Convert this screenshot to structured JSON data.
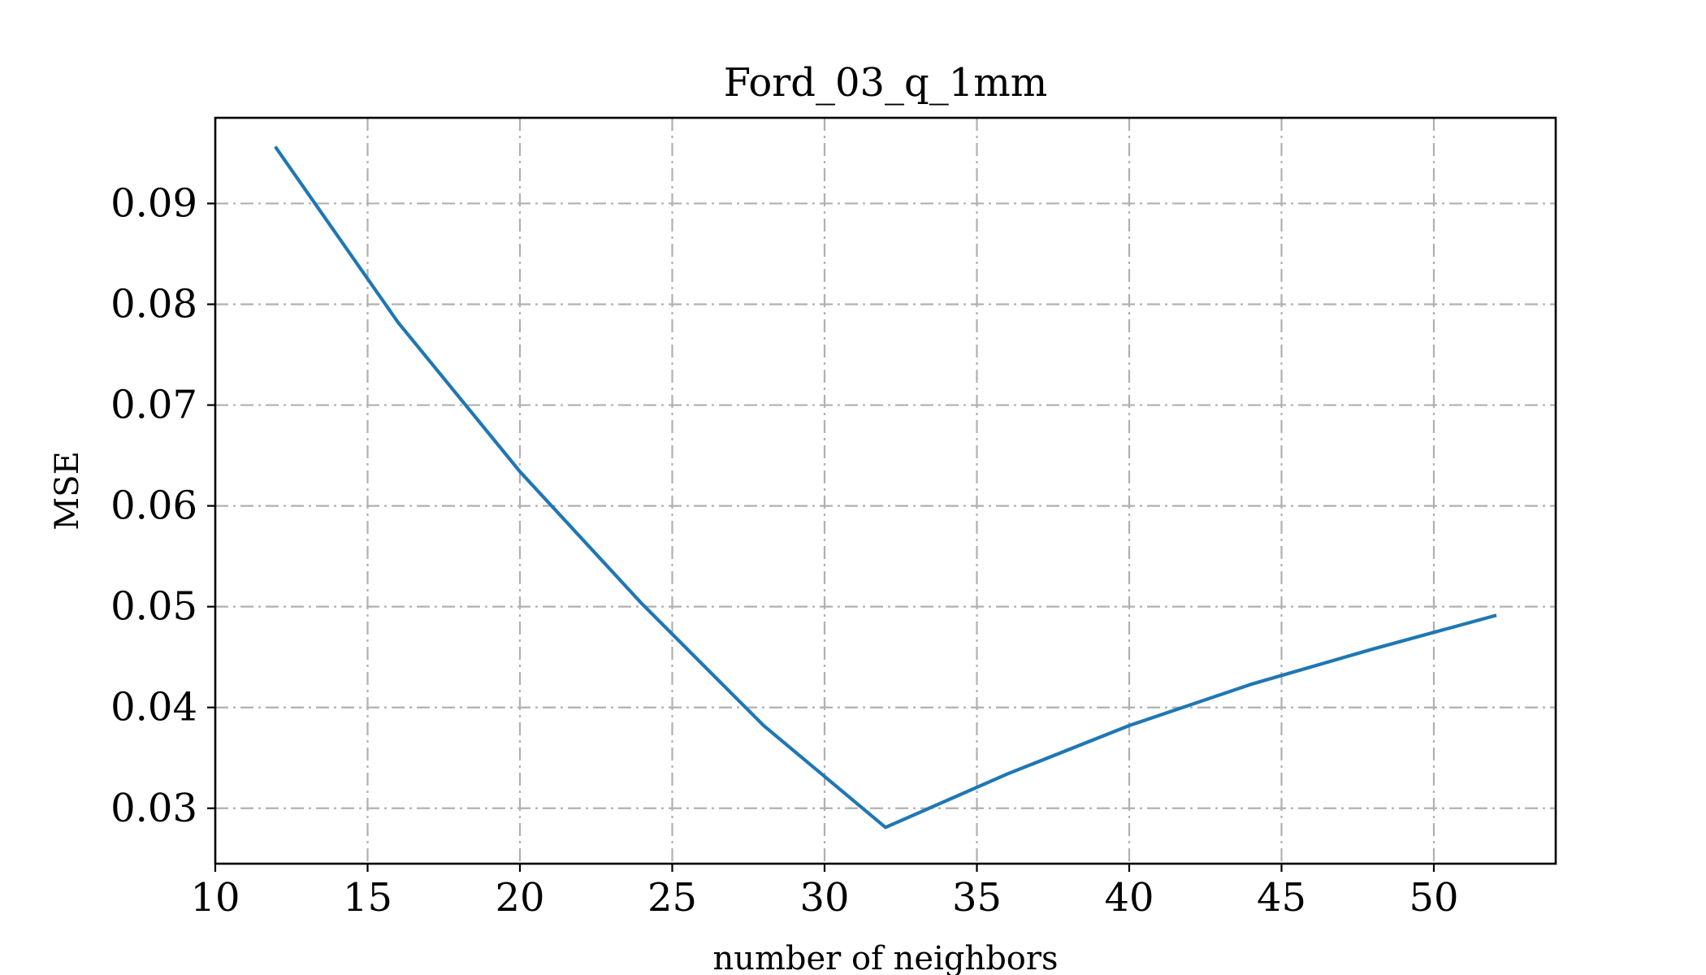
{
  "chart_data": {
    "type": "line",
    "title": "Ford_03_q_1mm",
    "xlabel": "number of neighbors",
    "ylabel": "MSE",
    "xlim": [
      10,
      54
    ],
    "ylim": [
      0.0245,
      0.0985
    ],
    "xticks": [
      10,
      15,
      20,
      25,
      30,
      35,
      40,
      45,
      50
    ],
    "xtick_labels": [
      "10",
      "15",
      "20",
      "25",
      "30",
      "35",
      "40",
      "45",
      "50"
    ],
    "yticks": [
      0.03,
      0.04,
      0.05,
      0.06,
      0.07,
      0.08,
      0.09
    ],
    "ytick_labels": [
      "0.03",
      "0.04",
      "0.05",
      "0.06",
      "0.07",
      "0.08",
      "0.09"
    ],
    "grid": true,
    "series": [
      {
        "color": "#1f77b4",
        "x": [
          12,
          16,
          20,
          24,
          28,
          32,
          36,
          40,
          44,
          48,
          52
        ],
        "y": [
          0.0955,
          0.0782,
          0.0634,
          0.0503,
          0.0382,
          0.0281,
          0.0334,
          0.0382,
          0.0423,
          0.0458,
          0.0491
        ]
      }
    ]
  }
}
